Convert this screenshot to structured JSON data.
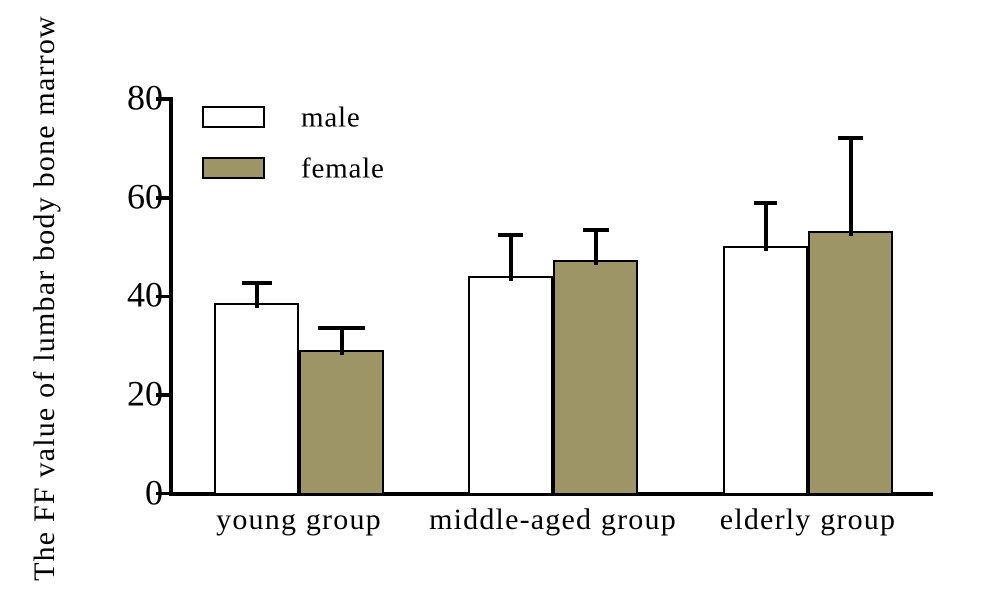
{
  "chart_data": {
    "type": "bar",
    "title": "",
    "xlabel": "",
    "ylabel": "The FF value of lumbar body bone marrow",
    "categories": [
      "young group",
      "middle-aged group",
      "elderly group"
    ],
    "series": [
      {
        "name": "male",
        "color": "#ffffff",
        "values": [
          38.6,
          44.1,
          50.3
        ],
        "errors": [
          4.1,
          8.3,
          8.6
        ]
      },
      {
        "name": "female",
        "color": "#9e9566",
        "values": [
          29.1,
          47.4,
          53.3
        ],
        "errors": [
          4.5,
          6.0,
          18.8
        ]
      }
    ],
    "ylim": [
      0,
      80
    ],
    "yticks": [
      0,
      20,
      40,
      60,
      80
    ],
    "error_bars": "upper",
    "grid": false,
    "legend_position": "top-left-inside",
    "bar_border_color": "#000000",
    "axis_color": "#000000",
    "background_color": "#ffffff",
    "error_cap_widths": [
      [
        30,
        25,
        23
      ],
      [
        47,
        26,
        25
      ]
    ]
  }
}
